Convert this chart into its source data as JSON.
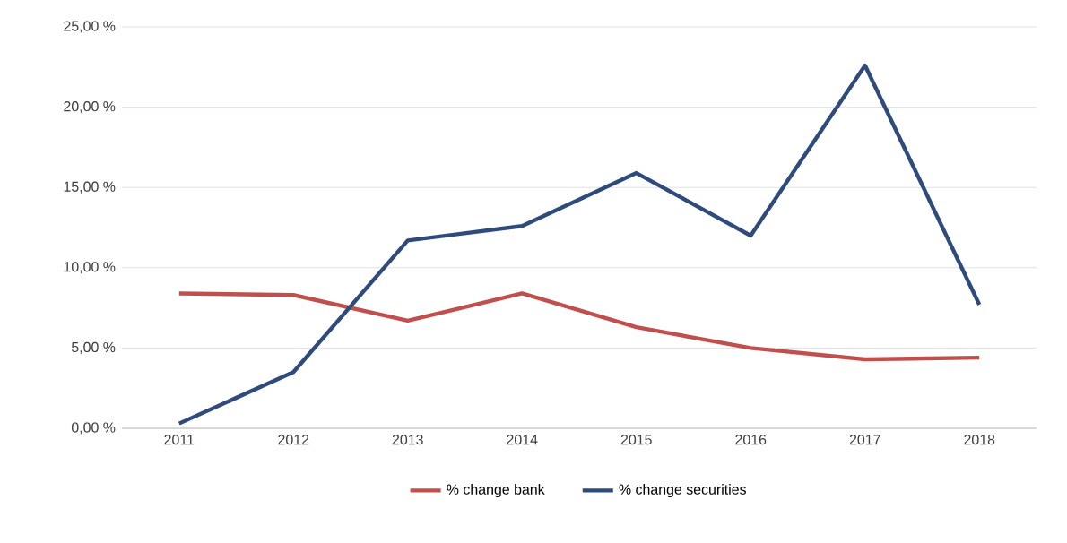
{
  "chart_data": {
    "type": "line",
    "categories": [
      "2011",
      "2012",
      "2013",
      "2014",
      "2015",
      "2016",
      "2017",
      "2018"
    ],
    "series": [
      {
        "name": "% change bank",
        "color": "#c0504d",
        "values": [
          8.4,
          8.3,
          6.7,
          8.4,
          6.3,
          5.0,
          4.3,
          4.4
        ]
      },
      {
        "name": "% change securities",
        "color": "#2f4b7c",
        "values": [
          0.3,
          3.5,
          11.7,
          12.6,
          15.9,
          12.0,
          22.6,
          7.7
        ]
      }
    ],
    "ylim": [
      0,
      25
    ],
    "yticks": [
      {
        "value": 0,
        "label": "0,00 %"
      },
      {
        "value": 5,
        "label": "5,00 %"
      },
      {
        "value": 10,
        "label": "10,00 %"
      },
      {
        "value": 15,
        "label": "15,00 %"
      },
      {
        "value": 20,
        "label": "20,00 %"
      },
      {
        "value": 25,
        "label": "25,00 %"
      }
    ],
    "grid": "y",
    "legend": "bottom",
    "marker": "none",
    "line_style": "solid"
  }
}
